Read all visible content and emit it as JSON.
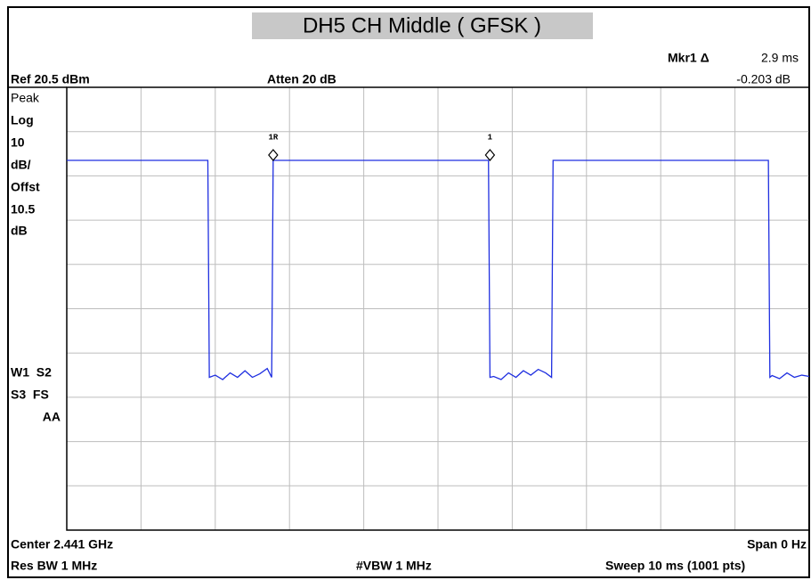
{
  "chart_data": {
    "type": "line",
    "title": "DH5 CH Middle ( GFSK )",
    "xlim": [
      0,
      10
    ],
    "ylim": [
      -79.5,
      20.5
    ],
    "x": [
      0,
      1.9,
      1.92,
      2.0,
      2.1,
      2.2,
      2.3,
      2.4,
      2.5,
      2.6,
      2.7,
      2.76,
      2.78,
      5.68,
      5.7,
      5.75,
      5.85,
      5.95,
      6.05,
      6.15,
      6.25,
      6.35,
      6.45,
      6.53,
      6.55,
      9.45,
      9.47,
      9.5,
      9.6,
      9.7,
      9.8,
      9.9,
      10
    ],
    "series": [
      {
        "color": "#1f2fe0",
        "values": [
          4,
          4,
          -45,
          -44.5,
          -45.5,
          -44,
          -45,
          -43.5,
          -45,
          -44.2,
          -43,
          -45,
          4,
          4,
          -45,
          -44.8,
          -45.5,
          -44,
          -45,
          -43.5,
          -44.5,
          -43.2,
          -44,
          -45,
          4,
          4,
          -45,
          -44.6,
          -45.3,
          -44,
          -45,
          -44.5,
          -44.8
        ]
      }
    ],
    "markers": [
      {
        "label": "1R",
        "x": 2.78,
        "y": 4
      },
      {
        "label": "1",
        "x": 5.7,
        "y": 4
      }
    ],
    "annotations": {
      "mkr": "Mkr1 Δ",
      "mkr_x": "2.9 ms",
      "mkr_y": "-0.203 dB",
      "ref": "Ref 20.5 dBm",
      "atten": "Atten 20 dB",
      "peak": "Peak",
      "log": "Log",
      "div": "10",
      "divunit": "dB/",
      "offst": "Offst",
      "offv": "10.5",
      "offunit": "dB",
      "w1": "W1  S2",
      "s3": "S3  FS",
      "aa": "AA",
      "center": "Center 2.441 GHz",
      "span": "Span 0 Hz",
      "rbw": "Res BW 1 MHz",
      "vbw": "#VBW 1 MHz",
      "sweep": "Sweep 10 ms (1001 pts)"
    }
  }
}
